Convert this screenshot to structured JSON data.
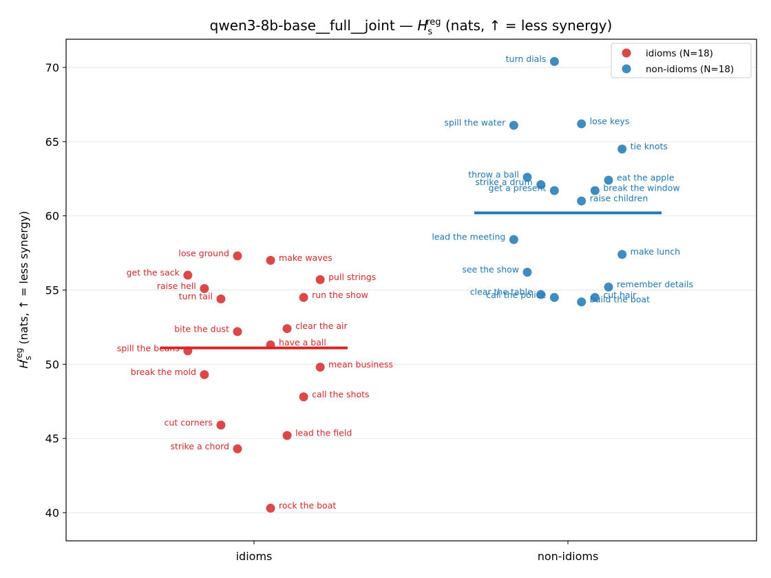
{
  "chart_data": {
    "type": "scatter",
    "title_main": "qwen3-8b-base__full__joint — ",
    "title_symbol": "H",
    "title_sub": "s",
    "title_sup": "reg",
    "title_rest": " (nats, ↑ = less synergy)",
    "ylabel_symbol": "H",
    "ylabel_sub": "s",
    "ylabel_sup": "reg",
    "ylabel_rest": " (nats, ↑ = less synergy)",
    "categories": [
      "idioms",
      "non-idioms"
    ],
    "ylim": [
      38.1,
      71.9
    ],
    "yticks": [
      40,
      45,
      50,
      55,
      60,
      65,
      70
    ],
    "grid": "horizontal",
    "legend_position": "top-right",
    "series": [
      {
        "name": "idioms (N=18)",
        "color": "#d62728",
        "mean": 51.1,
        "points": [
          {
            "label": "lose ground",
            "jitter": -0.055,
            "y": 57.3
          },
          {
            "label": "make waves",
            "jitter": 0.055,
            "y": 57.0
          },
          {
            "label": "get the sack",
            "jitter": -0.22,
            "y": 56.0
          },
          {
            "label": "pull strings",
            "jitter": 0.22,
            "y": 55.7
          },
          {
            "label": "raise hell",
            "jitter": -0.165,
            "y": 55.1
          },
          {
            "label": "run the show",
            "jitter": 0.165,
            "y": 54.5
          },
          {
            "label": "turn tail",
            "jitter": -0.11,
            "y": 54.4
          },
          {
            "label": "clear the air",
            "jitter": 0.11,
            "y": 52.4
          },
          {
            "label": "bite the dust",
            "jitter": -0.055,
            "y": 52.2
          },
          {
            "label": "have a ball",
            "jitter": 0.055,
            "y": 51.3
          },
          {
            "label": "spill the beans",
            "jitter": -0.22,
            "y": 50.9
          },
          {
            "label": "mean business",
            "jitter": 0.22,
            "y": 49.8
          },
          {
            "label": "break the mold",
            "jitter": -0.165,
            "y": 49.3
          },
          {
            "label": "call the shots",
            "jitter": 0.165,
            "y": 47.8
          },
          {
            "label": "cut corners",
            "jitter": -0.11,
            "y": 45.9
          },
          {
            "label": "lead the field",
            "jitter": 0.11,
            "y": 45.2
          },
          {
            "label": "strike a chord",
            "jitter": -0.055,
            "y": 44.3
          },
          {
            "label": "rock the boat",
            "jitter": 0.055,
            "y": 40.3
          }
        ]
      },
      {
        "name": "non-idioms (N=18)",
        "color": "#1f77b4",
        "mean": 60.2,
        "points": [
          {
            "label": "turn dials",
            "jitter": -0.045,
            "y": 70.4
          },
          {
            "label": "spill the water",
            "jitter": -0.18,
            "y": 66.1
          },
          {
            "label": "lose keys",
            "jitter": 0.045,
            "y": 66.2
          },
          {
            "label": "tie knots",
            "jitter": 0.18,
            "y": 64.5
          },
          {
            "label": "throw a ball",
            "jitter": -0.135,
            "y": 62.6
          },
          {
            "label": "strike a drum",
            "jitter": -0.09,
            "y": 62.1
          },
          {
            "label": "eat the apple",
            "jitter": 0.135,
            "y": 62.4
          },
          {
            "label": "get a present",
            "jitter": -0.045,
            "y": 61.7
          },
          {
            "label": "break the window",
            "jitter": 0.09,
            "y": 61.7
          },
          {
            "label": "raise children",
            "jitter": 0.045,
            "y": 61.0
          },
          {
            "label": "lead the meeting",
            "jitter": -0.18,
            "y": 58.4
          },
          {
            "label": "make lunch",
            "jitter": 0.18,
            "y": 57.4
          },
          {
            "label": "see the show",
            "jitter": -0.135,
            "y": 56.2
          },
          {
            "label": "remember details",
            "jitter": 0.135,
            "y": 55.2
          },
          {
            "label": "clear the table",
            "jitter": -0.09,
            "y": 54.7
          },
          {
            "label": "call the police",
            "jitter": -0.045,
            "y": 54.5
          },
          {
            "label": "cut hair",
            "jitter": 0.09,
            "y": 54.5
          },
          {
            "label": "build the boat",
            "jitter": 0.045,
            "y": 54.2
          }
        ]
      }
    ]
  }
}
